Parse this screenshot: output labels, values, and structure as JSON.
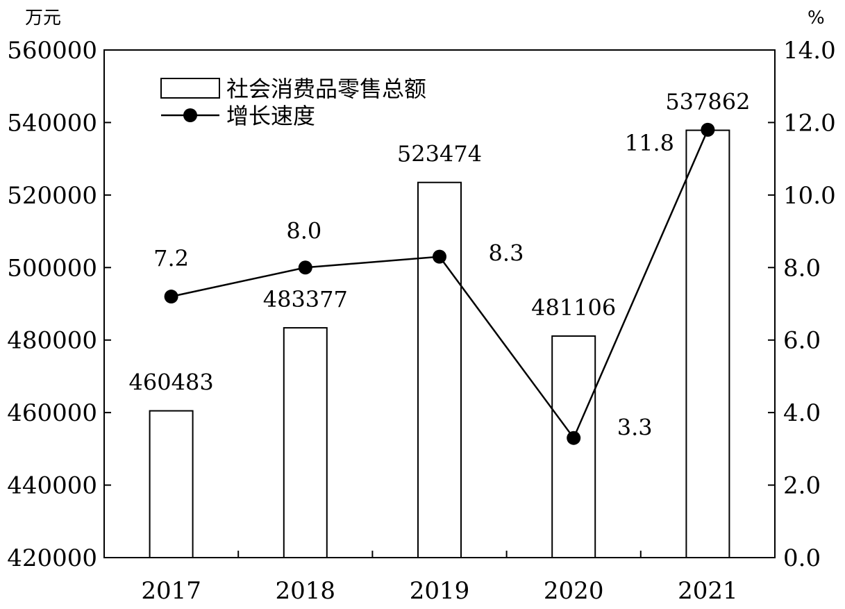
{
  "chart_data": {
    "type": "bar",
    "categories": [
      "2017",
      "2018",
      "2019",
      "2020",
      "2021"
    ],
    "series": [
      {
        "name": "社会消费品零售总额",
        "type": "bar",
        "axis": "left",
        "values": [
          460483,
          483377,
          523474,
          481106,
          537862
        ],
        "labels": [
          "460483",
          "483377",
          "523474",
          "481106",
          "537862"
        ]
      },
      {
        "name": "增长速度",
        "type": "line",
        "axis": "right",
        "values": [
          7.2,
          8.0,
          8.3,
          3.3,
          11.8
        ],
        "labels": [
          "7.2",
          "8.0",
          "8.3",
          "3.3",
          "11.8"
        ]
      }
    ],
    "y_left": {
      "unit": "万元",
      "range": [
        420000,
        560000
      ],
      "ticks": [
        "420000",
        "440000",
        "460000",
        "480000",
        "500000",
        "520000",
        "540000",
        "560000"
      ]
    },
    "y_right": {
      "unit": "%",
      "range": [
        0,
        14
      ],
      "ticks": [
        "0.0",
        "2.0",
        "4.0",
        "6.0",
        "8.0",
        "10.0",
        "12.0",
        "14.0"
      ]
    },
    "legend": "top-left",
    "grid": false,
    "colors": {
      "bar_fill": "#ffffff",
      "stroke": "#000000",
      "marker": "#000000"
    }
  }
}
